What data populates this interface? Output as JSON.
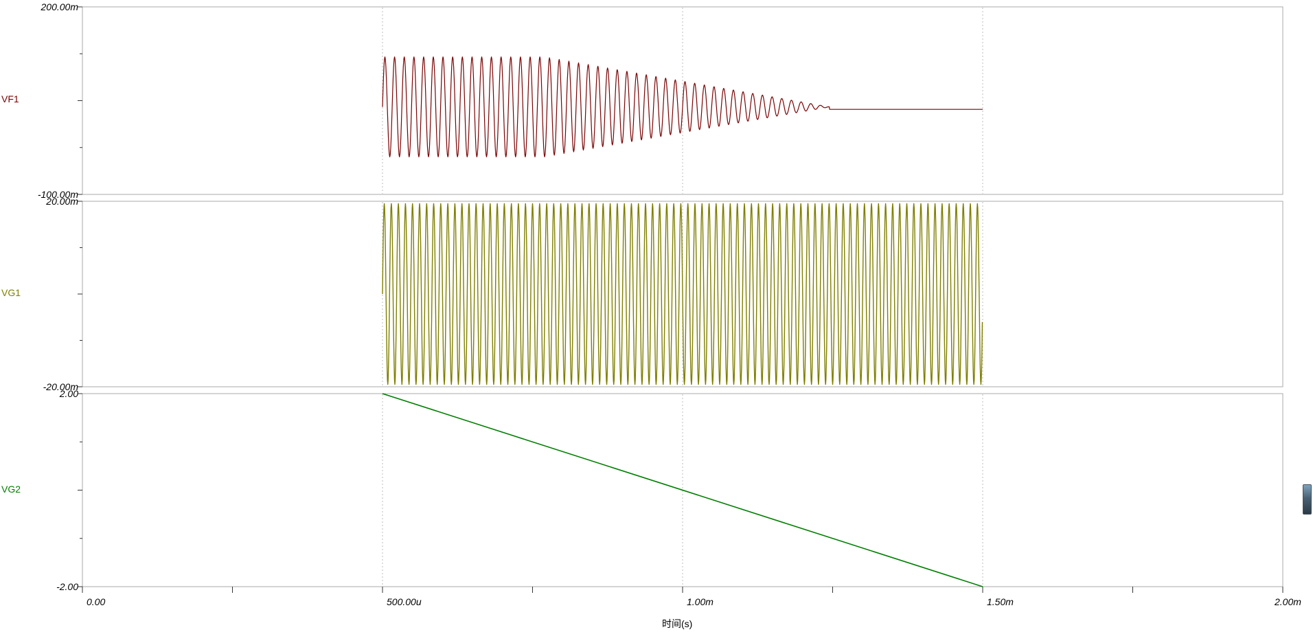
{
  "chart_data": {
    "type": "line",
    "title": "",
    "xlabel": "时间(s)",
    "x_range_s": [
      0,
      0.002
    ],
    "x_ticks": [
      {
        "t": 0.0,
        "label": "0.00"
      },
      {
        "t": 0.0005,
        "label": "500.00u"
      },
      {
        "t": 0.001,
        "label": "1.00m"
      },
      {
        "t": 0.0015,
        "label": "1.50m"
      },
      {
        "t": 0.002,
        "label": "2.00m"
      }
    ],
    "x_minor_tick_interval_s": 0.00025,
    "grid": "vertical dotted lines at 500.00u, 1.00m, 1.50m",
    "legend_position": "left margin, one name per panel",
    "panels": [
      {
        "name": "VF1",
        "color": "#7a0000",
        "y_max": 0.2,
        "y_min": -0.1,
        "ymax_label": "200.00m",
        "ymin_label": "-100.00m",
        "signal": {
          "kind": "decaying-tone",
          "description": "No data before 500us. Sine burst starting at 500us, centered near 40m: constant amplitude ~80m until ~0.77ms, then linear amplitude decay to 0 at ~1.245ms, then constant DC level ~36m until 1.5ms. No data after 1.5ms.",
          "t_start": 0.0005,
          "t_flat": 0.00077,
          "t_decay_end": 0.001245,
          "t_end": 0.0015,
          "offset": 0.04,
          "amplitude": 0.08,
          "frequency_hz": 62000,
          "flat_value": 0.036
        }
      },
      {
        "name": "VG1",
        "color": "#7f7f00",
        "y_max": 0.02,
        "y_min": -0.02,
        "ymax_label": "20.00m",
        "ymin_label": "-20.00m",
        "signal": {
          "kind": "tone",
          "description": "Constant-amplitude high-frequency sine, ~±19.5m (nearly full scale), from 500us to 1.5ms. No data outside that window.",
          "t_start": 0.0005,
          "t_end": 0.0015,
          "offset": 0,
          "amplitude": 0.0195,
          "frequency_hz": 85000
        }
      },
      {
        "name": "VG2",
        "color": "#007f00",
        "y_max": 2.0,
        "y_min": -2.0,
        "ymax_label": "2.00",
        "ymin_label": "-2.00",
        "signal": {
          "kind": "ramp",
          "description": "Linear ramp from +2.00 at 500us down to -2.00 at 1.5ms. No data outside that window.",
          "t_start": 0.0005,
          "t_end": 0.0015,
          "v_start": 2.0,
          "v_end": -2.0
        }
      }
    ]
  },
  "scrollbar": {
    "orientation": "vertical",
    "location": "right-edge"
  }
}
